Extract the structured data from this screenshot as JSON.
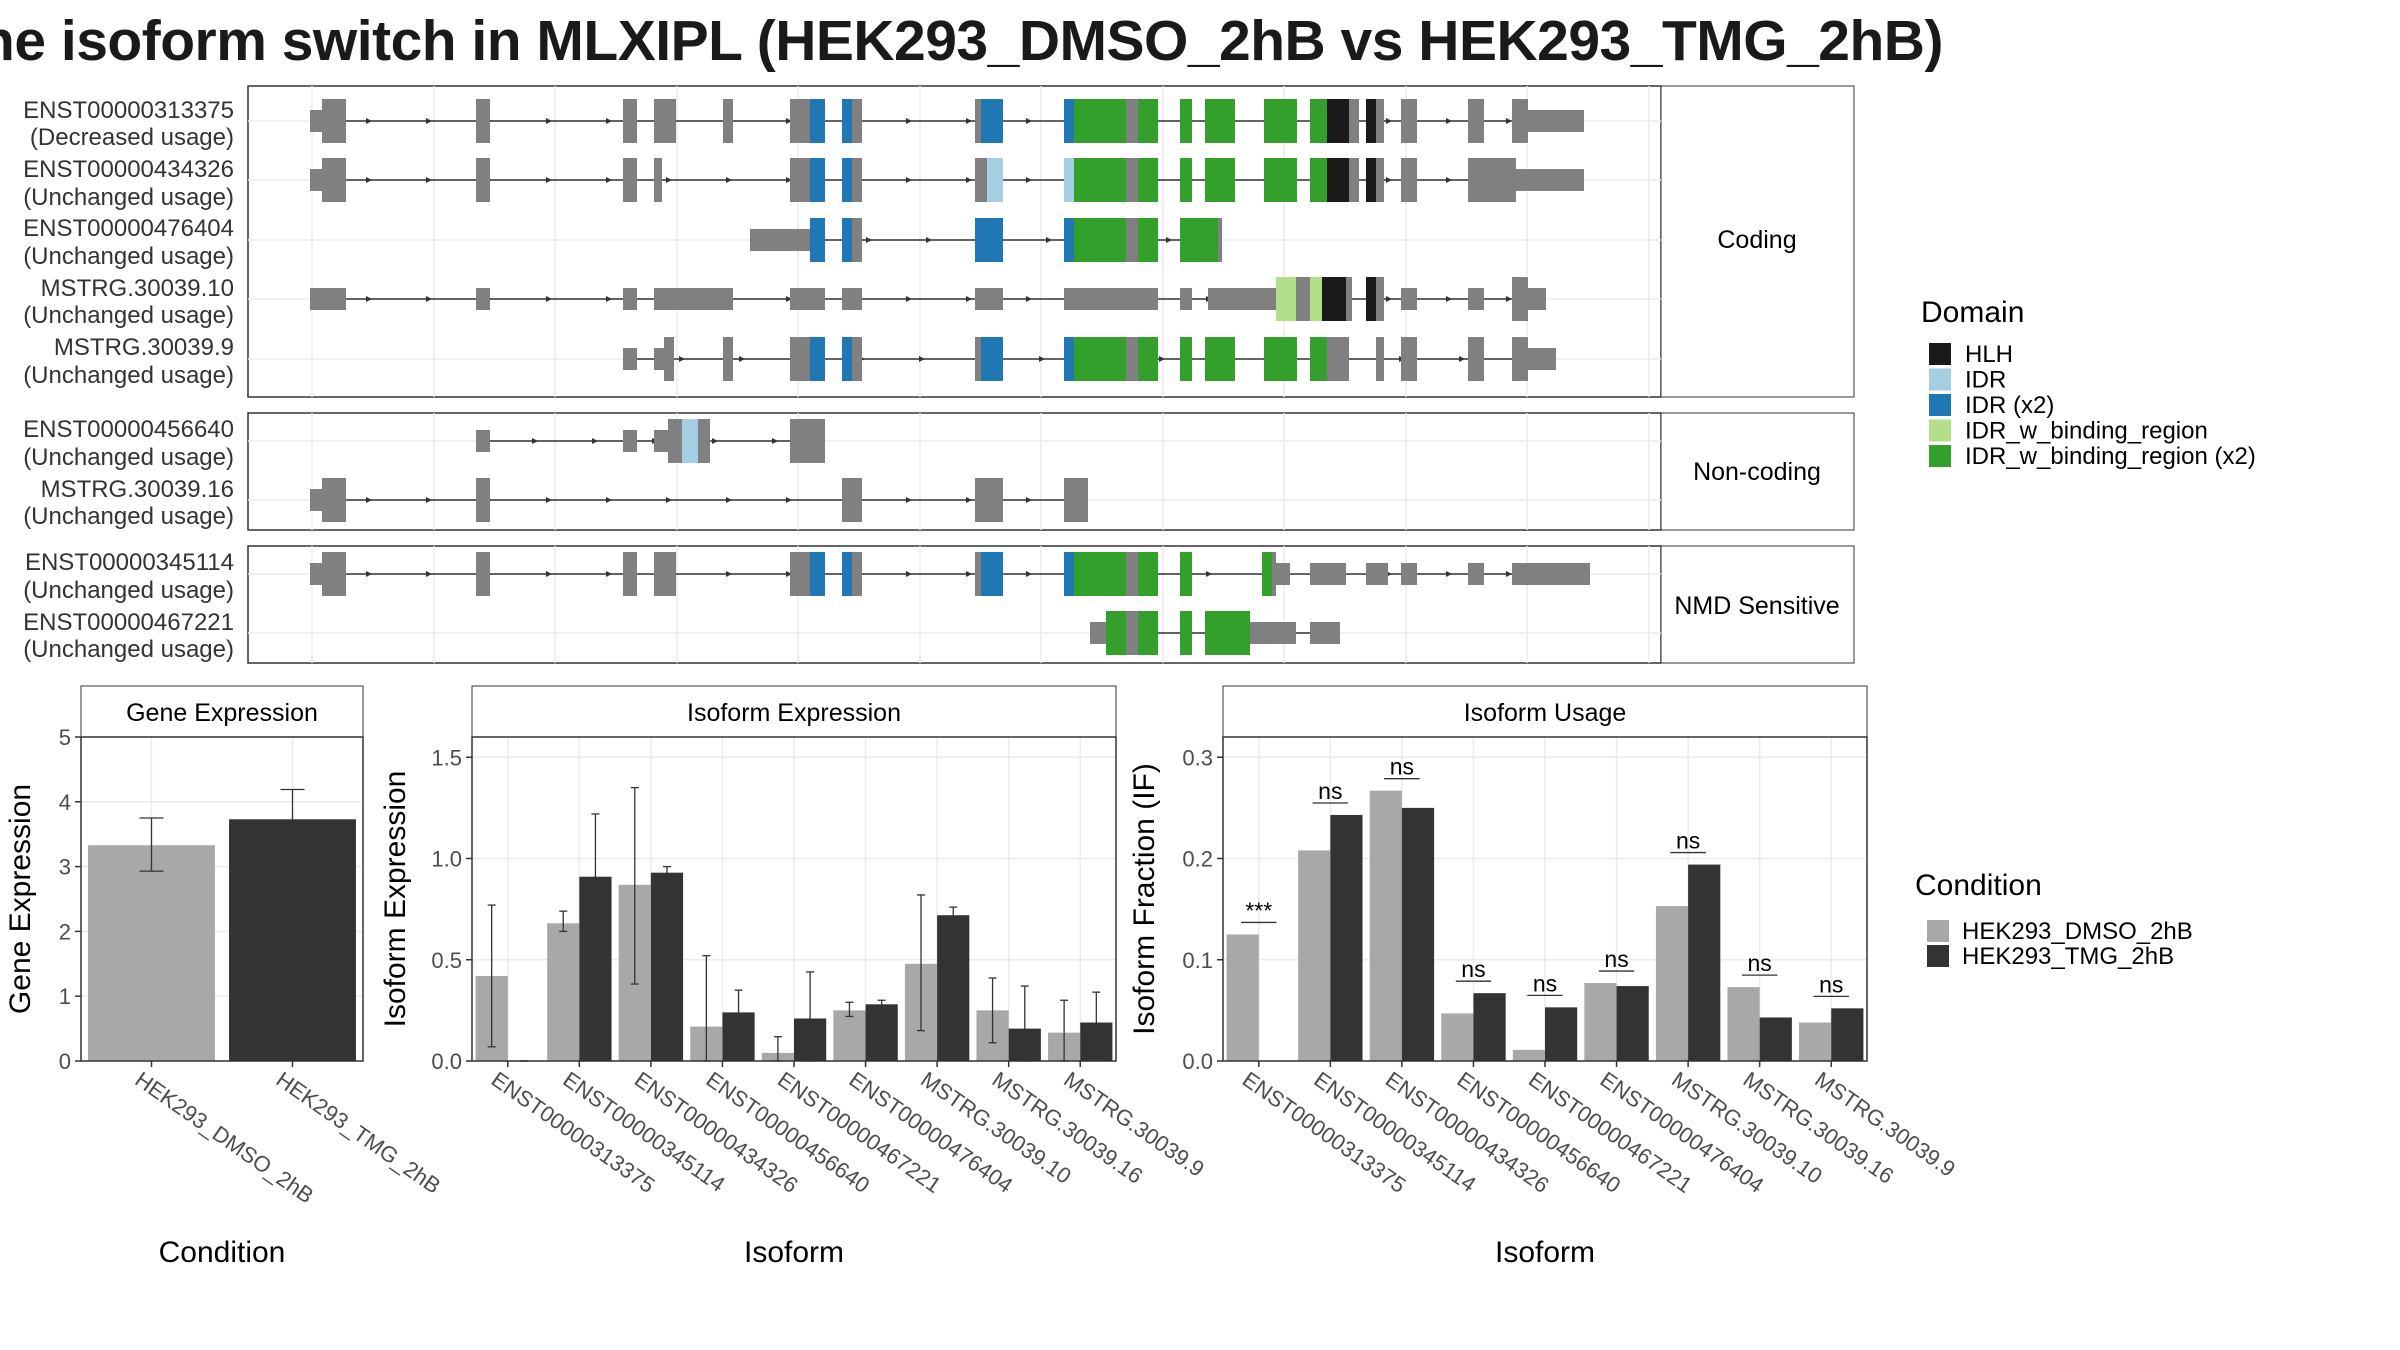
{
  "title": "he isoform switch in MLXIPL (HEK293_DMSO_2hB vs HEK293_TMG_2hB)",
  "domain_legend": {
    "title": "Domain",
    "items": [
      {
        "label": "HLH",
        "color": "#1a1a1a"
      },
      {
        "label": "IDR",
        "color": "#a6cee3"
      },
      {
        "label": "IDR (x2)",
        "color": "#1f78b4"
      },
      {
        "label": "IDR_w_binding_region",
        "color": "#b2df8a"
      },
      {
        "label": "IDR_w_binding_region (x2)",
        "color": "#33a02c"
      }
    ]
  },
  "condition_legend": {
    "title": "Condition",
    "items": [
      {
        "label": "HEK293_DMSO_2hB",
        "color": "#a8a8a8"
      },
      {
        "label": "HEK293_TMG_2hB",
        "color": "#333333"
      }
    ]
  },
  "transcript_panels": [
    {
      "label": "Coding",
      "transcripts": [
        {
          "id": "ENST00000313375",
          "usage": "(Decreased usage)"
        },
        {
          "id": "ENST00000434326",
          "usage": "(Unchanged usage)"
        },
        {
          "id": "ENST00000476404",
          "usage": "(Unchanged usage)"
        },
        {
          "id": "MSTRG.30039.10",
          "usage": "(Unchanged usage)"
        },
        {
          "id": "MSTRG.30039.9",
          "usage": "(Unchanged usage)"
        }
      ]
    },
    {
      "label": "Non-coding",
      "transcripts": [
        {
          "id": "ENST00000456640",
          "usage": "(Unchanged usage)"
        },
        {
          "id": "MSTRG.30039.16",
          "usage": "(Unchanged usage)"
        }
      ]
    },
    {
      "label": "NMD Sensitive",
      "transcripts": [
        {
          "id": "ENST00000345114",
          "usage": "(Unchanged usage)"
        },
        {
          "id": "ENST00000467221",
          "usage": "(Unchanged usage)"
        }
      ]
    }
  ],
  "chart_data": [
    {
      "type": "bar",
      "title": "Gene Expression",
      "xlabel": "Condition",
      "ylabel": "Gene Expression",
      "ylim": [
        0,
        5
      ],
      "yticks": [
        0,
        1,
        2,
        3,
        4,
        5
      ],
      "categories": [
        "HEK293_DMSO_2hB",
        "HEK293_TMG_2hB"
      ],
      "values": [
        3.33,
        3.73
      ],
      "error": [
        [
          2.93,
          3.75
        ],
        [
          3.28,
          4.19
        ]
      ]
    },
    {
      "type": "bar",
      "title": "Isoform Expression",
      "xlabel": "Isoform",
      "ylabel": "Isoform Expression",
      "ylim": [
        0,
        1.6
      ],
      "yticks": [
        0.0,
        0.5,
        1.0,
        1.5
      ],
      "categories": [
        "ENST00000313375",
        "ENST00000345114",
        "ENST00000434326",
        "ENST00000456640",
        "ENST00000467221",
        "ENST00000476404",
        "MSTRG.30039.10",
        "MSTRG.30039.16",
        "MSTRG.30039.9"
      ],
      "series": [
        {
          "name": "HEK293_DMSO_2hB",
          "values": [
            0.42,
            0.68,
            0.87,
            0.17,
            0.04,
            0.25,
            0.48,
            0.25,
            0.14
          ],
          "error": [
            [
              0.07,
              0.77
            ],
            [
              0.64,
              0.74
            ],
            [
              0.38,
              1.35
            ],
            [
              0.0,
              0.52
            ],
            [
              0.0,
              0.12
            ],
            [
              0.22,
              0.29
            ],
            [
              0.15,
              0.82
            ],
            [
              0.09,
              0.41
            ],
            [
              0.0,
              0.3
            ]
          ]
        },
        {
          "name": "HEK293_TMG_2hB",
          "values": [
            0.0,
            0.91,
            0.93,
            0.24,
            0.21,
            0.28,
            0.72,
            0.16,
            0.19
          ],
          "error": [
            [
              0.0,
              0.0
            ],
            [
              0.62,
              1.22
            ],
            [
              0.9,
              0.96
            ],
            [
              0.14,
              0.35
            ],
            [
              0.0,
              0.44
            ],
            [
              0.25,
              0.3
            ],
            [
              0.68,
              0.76
            ],
            [
              0.0,
              0.37
            ],
            [
              0.02,
              0.34
            ]
          ]
        }
      ]
    },
    {
      "type": "bar",
      "title": "Isoform Usage",
      "xlabel": "Isoform",
      "ylabel": "Isoform Fraction (IF)",
      "ylim": [
        0,
        0.32
      ],
      "yticks": [
        0.0,
        0.1,
        0.2,
        0.3
      ],
      "categories": [
        "ENST00000313375",
        "ENST00000345114",
        "ENST00000434326",
        "ENST00000456640",
        "ENST00000467221",
        "ENST00000476404",
        "MSTRG.30039.10",
        "MSTRG.30039.16",
        "MSTRG.30039.9"
      ],
      "series": [
        {
          "name": "HEK293_DMSO_2hB",
          "values": [
            0.125,
            0.208,
            0.267,
            0.047,
            0.011,
            0.077,
            0.153,
            0.073,
            0.038
          ]
        },
        {
          "name": "HEK293_TMG_2hB",
          "values": [
            0.0,
            0.243,
            0.25,
            0.067,
            0.053,
            0.074,
            0.194,
            0.043,
            0.052
          ]
        }
      ],
      "significance": [
        "***",
        "ns",
        "ns",
        "ns",
        "ns",
        "ns",
        "ns",
        "ns",
        "ns"
      ]
    }
  ]
}
